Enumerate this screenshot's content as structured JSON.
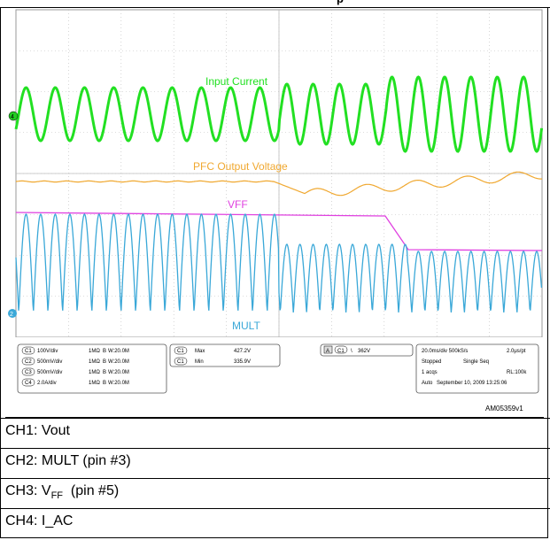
{
  "header": {
    "text": "p"
  },
  "chart_data": {
    "type": "line",
    "title": "",
    "series": [
      {
        "name": "Input Current",
        "channel": "CH4",
        "color": "#22e022",
        "description_values": {
          "cycles_before": 9,
          "cycles_after": 10,
          "amp_before": 0.22,
          "amp_after": 0.32
        }
      },
      {
        "name": "PFC Output Voltage",
        "channel": "CH1",
        "color": "#f0a830",
        "values": {
          "before": 427.2,
          "after_min": 335.9
        }
      },
      {
        "name": "VFF",
        "channel": "CH3",
        "color": "#e040e0"
      },
      {
        "name": "MULT",
        "channel": "CH2",
        "color": "#3aa8d8"
      }
    ],
    "annotations": {
      "input_current": "Input Current",
      "pfc": "PFC Output Voltage",
      "vff": "VFF",
      "mult": "MULT"
    },
    "settings": {
      "ch1": {
        "label": "C1",
        "scale": "100V/div",
        "imp": "1MΩ",
        "bw": "B",
        "bwval": "W:20.0M"
      },
      "ch2": {
        "label": "C2",
        "scale": "500mV/div",
        "imp": "1MΩ",
        "bw": "B",
        "bwval": "W:20.0M"
      },
      "ch3": {
        "label": "C3",
        "scale": "500mV/div",
        "imp": "1MΩ",
        "bw": "B",
        "bwval": "W:20.0M"
      },
      "ch4": {
        "label": "C4",
        "scale": "2.0A/div",
        "imp": "1MΩ",
        "bw": "B",
        "bwval": "W:20.0M"
      }
    },
    "measure": {
      "max_label": "Max",
      "max_ch": "C1",
      "max_val": "427.2V",
      "min_label": "Min",
      "min_ch": "C1",
      "min_val": "335.9V"
    },
    "trigger": {
      "a": "A",
      "ch": "C1",
      "sym": "\\",
      "val": "362V"
    },
    "timebase": {
      "line1a": "20.0ms/div 500kS/s",
      "line1b": "2.0μs/pt",
      "line2a": "Stopped",
      "line2b": "Single Seq",
      "line3a": "1 acqs",
      "line3b": "RL:100k",
      "line4a": "Auto",
      "line4b": "September 10, 2009  13:25:06"
    },
    "figure_id": "AM05359v1"
  },
  "captions": {
    "ch1": "CH1: Vout",
    "ch2": "CH2: MULT (pin #3)",
    "ch3a": "CH3: V",
    "ch3sub": "FF",
    "ch3b": "  (pin #5)",
    "ch4": "CH4: I_AC"
  }
}
